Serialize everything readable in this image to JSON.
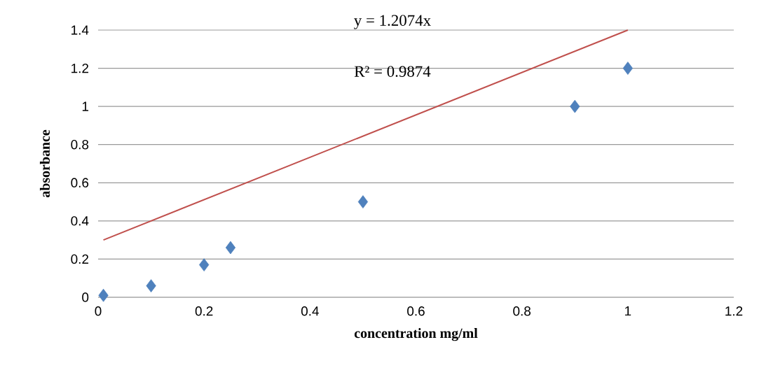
{
  "chart_data": {
    "type": "scatter",
    "xlabel": "concentration mg/ml",
    "ylabel": "absorbance",
    "x": [
      0.01,
      0.1,
      0.2,
      0.25,
      0.5,
      0.9,
      1.0
    ],
    "series": [
      {
        "color": "#4f81bd",
        "marker": "diamond",
        "values": [
          0.01,
          0.06,
          0.17,
          0.26,
          0.5,
          1.0,
          1.2
        ]
      },
      {
        "type": "line",
        "color": "#c0504d",
        "marker": "none",
        "line_style": "solid",
        "x": [
          0.01,
          1.0
        ],
        "values": [
          0.3,
          1.4
        ]
      }
    ],
    "xlim": [
      0,
      1.2
    ],
    "ylim": [
      0,
      1.4
    ],
    "xticks": [
      0,
      0.2,
      0.4,
      0.6,
      0.8,
      1,
      1.2
    ],
    "yticks": [
      0,
      0.2,
      0.4,
      0.6,
      0.8,
      1,
      1.2,
      1.4
    ],
    "grid": "y",
    "annotations": [
      "y = 1.2074x",
      "R² = 0.9874"
    ]
  }
}
